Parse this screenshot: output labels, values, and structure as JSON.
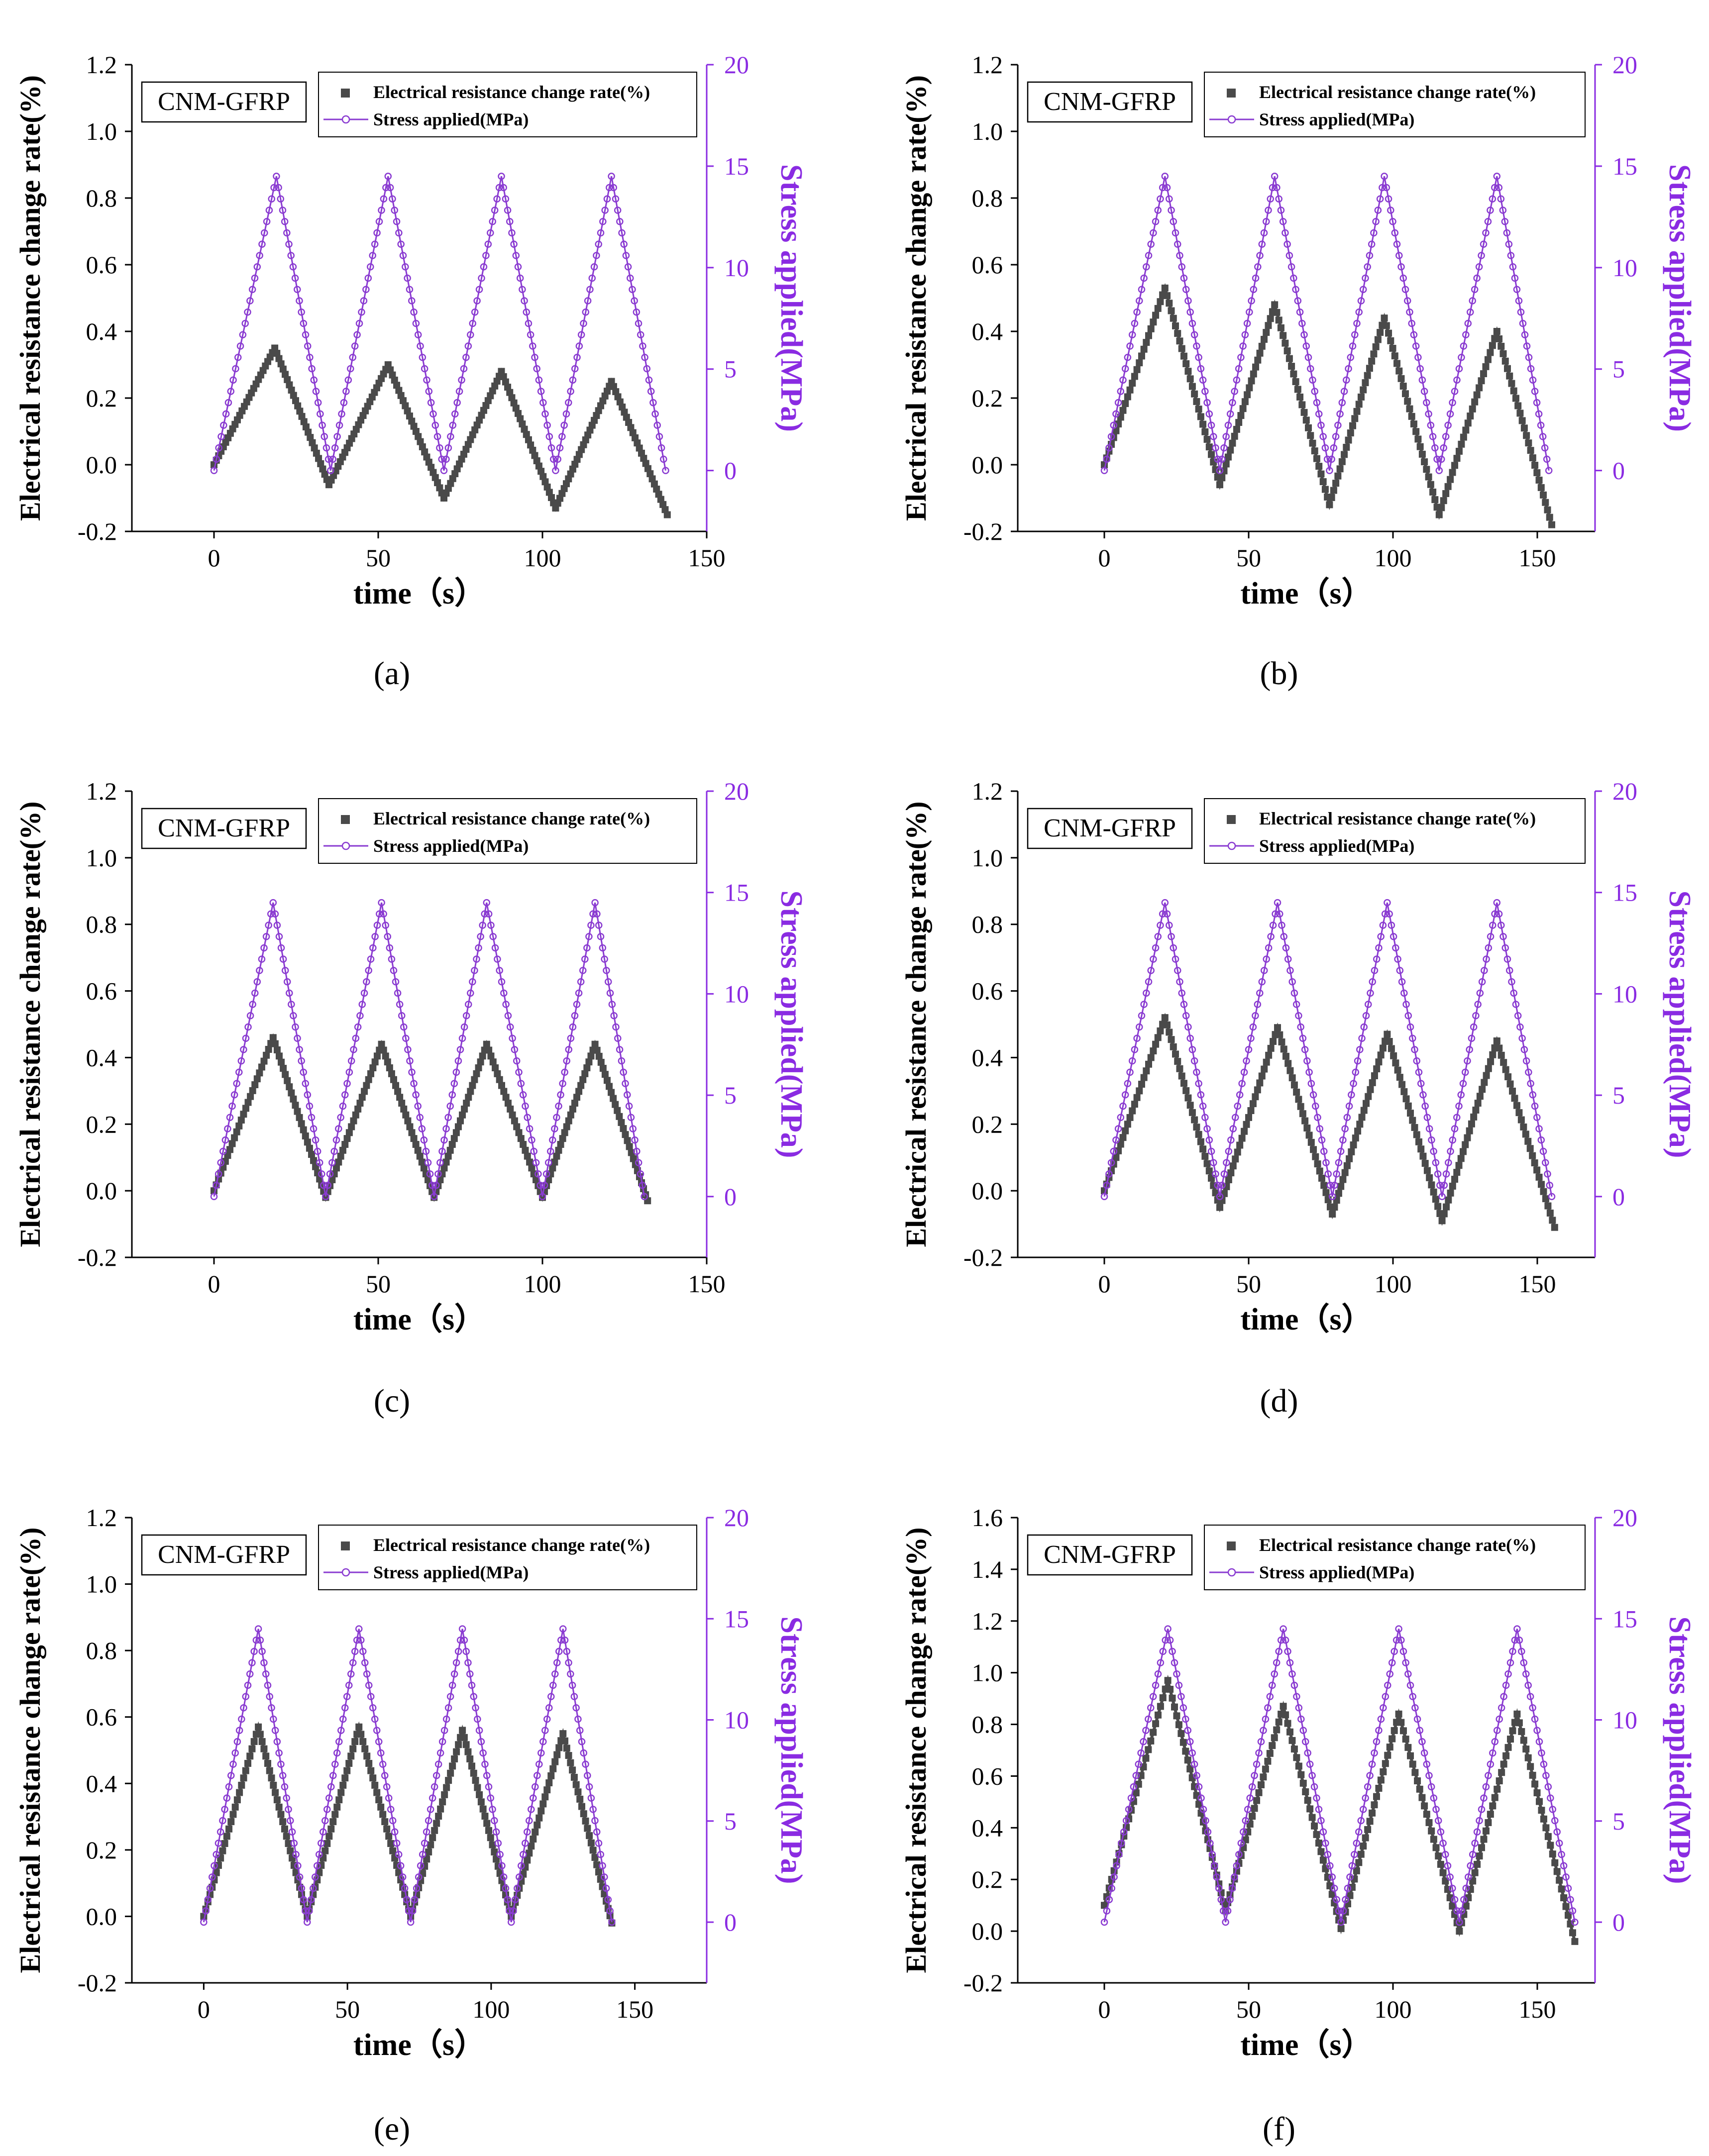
{
  "colors": {
    "resistance": "#4a4a4a",
    "stress": "#8a3bd1",
    "axis": "#000000",
    "right_axis": "#8a2be2"
  },
  "chart_data": [
    {
      "panel": "(a)",
      "type": "line",
      "title": "",
      "badge": "CNM-GFRP",
      "xlabel": "time（s）",
      "ylabel": "Electrical resistance change rate(%)",
      "y2label": "Stress applied(MPa)",
      "legend": [
        "Electrical resistance change rate(%)",
        "Stress applied(MPa)"
      ],
      "legend_position": "top-right",
      "xlim": [
        -25,
        150
      ],
      "xticks": [
        0,
        50,
        100,
        150
      ],
      "ylim": [
        -0.2,
        1.2
      ],
      "yticks": [
        -0.2,
        0.0,
        0.2,
        0.4,
        0.6,
        0.8,
        1.0,
        1.2
      ],
      "y2lim": [
        -3,
        20
      ],
      "y2ticks": [
        0,
        5,
        10,
        15,
        20
      ],
      "series": [
        {
          "name": "Electrical resistance change rate(%)",
          "axis": "left",
          "marker": "square",
          "x": [
            0,
            18.5,
            35,
            53,
            70,
            87.5,
            104,
            121,
            138
          ],
          "y": [
            0.0,
            0.35,
            -0.06,
            0.3,
            -0.1,
            0.28,
            -0.13,
            0.25,
            -0.15
          ]
        },
        {
          "name": "Stress applied(MPa)",
          "axis": "right",
          "marker": "circle",
          "x": [
            0,
            19,
            35.5,
            53,
            70,
            87.5,
            104,
            121,
            137.5
          ],
          "y": [
            0,
            14.5,
            0,
            14.5,
            0,
            14.5,
            0,
            14.5,
            0
          ]
        }
      ]
    },
    {
      "panel": "(b)",
      "type": "line",
      "title": "",
      "badge": "CNM-GFRP",
      "xlabel": "time（s）",
      "ylabel": "Electrical resistance change rate(%)",
      "y2label": "Stress applied(MPa)",
      "legend": [
        "Electrical resistance change rate(%)",
        "Stress applied(MPa)"
      ],
      "legend_position": "top-right",
      "xlim": [
        -30,
        170
      ],
      "xticks": [
        0,
        50,
        100,
        150
      ],
      "ylim": [
        -0.2,
        1.2
      ],
      "yticks": [
        -0.2,
        0.0,
        0.2,
        0.4,
        0.6,
        0.8,
        1.0,
        1.2
      ],
      "y2lim": [
        -3,
        20
      ],
      "y2ticks": [
        0,
        5,
        10,
        15,
        20
      ],
      "series": [
        {
          "name": "Electrical resistance change rate(%)",
          "axis": "left",
          "marker": "square",
          "x": [
            0,
            21,
            40,
            59,
            78,
            97,
            116,
            136,
            155
          ],
          "y": [
            0.0,
            0.53,
            -0.06,
            0.48,
            -0.12,
            0.44,
            -0.15,
            0.4,
            -0.18
          ]
        },
        {
          "name": "Stress applied(MPa)",
          "axis": "right",
          "marker": "circle",
          "x": [
            0,
            21,
            40,
            59,
            78,
            97,
            116,
            136,
            154
          ],
          "y": [
            0,
            14.5,
            0,
            14.5,
            0,
            14.5,
            0,
            14.5,
            0
          ]
        }
      ]
    },
    {
      "panel": "(c)",
      "type": "line",
      "title": "",
      "badge": "CNM-GFRP",
      "xlabel": "time（s）",
      "ylabel": "Electrical resistance change rate(%)",
      "y2label": "Stress applied(MPa)",
      "legend": [
        "Electrical resistance change rate(%)",
        "Stress applied(MPa)"
      ],
      "legend_position": "top-right",
      "xlim": [
        -25,
        150
      ],
      "xticks": [
        0,
        50,
        100,
        150
      ],
      "ylim": [
        -0.2,
        1.2
      ],
      "yticks": [
        -0.2,
        0.0,
        0.2,
        0.4,
        0.6,
        0.8,
        1.0,
        1.2
      ],
      "y2lim": [
        -3,
        20
      ],
      "y2ticks": [
        0,
        5,
        10,
        15,
        20
      ],
      "series": [
        {
          "name": "Electrical resistance change rate(%)",
          "axis": "left",
          "marker": "square",
          "x": [
            0,
            18,
            34,
            51,
            67,
            83,
            100,
            116,
            132
          ],
          "y": [
            0.0,
            0.46,
            -0.02,
            0.44,
            -0.02,
            0.44,
            -0.02,
            0.44,
            -0.03
          ]
        },
        {
          "name": "Stress applied(MPa)",
          "axis": "right",
          "marker": "circle",
          "x": [
            0,
            18,
            34,
            51,
            67,
            83,
            100,
            116,
            131
          ],
          "y": [
            0,
            14.5,
            0,
            14.5,
            0,
            14.5,
            0,
            14.5,
            0
          ]
        }
      ]
    },
    {
      "panel": "(d)",
      "type": "line",
      "title": "",
      "badge": "CNM-GFRP",
      "xlabel": "time（s）",
      "ylabel": "Electrical resistance change rate(%)",
      "y2label": "Stress applied(MPa)",
      "legend": [
        "Electrical resistance change rate(%)",
        "Stress applied(MPa)"
      ],
      "legend_position": "top-right",
      "xlim": [
        -30,
        170
      ],
      "xticks": [
        0,
        50,
        100,
        150
      ],
      "ylim": [
        -0.2,
        1.2
      ],
      "yticks": [
        -0.2,
        0.0,
        0.2,
        0.4,
        0.6,
        0.8,
        1.0,
        1.2
      ],
      "y2lim": [
        -3,
        20
      ],
      "y2ticks": [
        0,
        5,
        10,
        15,
        20
      ],
      "series": [
        {
          "name": "Electrical resistance change rate(%)",
          "axis": "left",
          "marker": "square",
          "x": [
            0,
            21,
            40,
            60,
            79,
            98,
            117,
            136,
            156
          ],
          "y": [
            0.0,
            0.52,
            -0.05,
            0.49,
            -0.07,
            0.47,
            -0.09,
            0.45,
            -0.11
          ]
        },
        {
          "name": "Stress applied(MPa)",
          "axis": "right",
          "marker": "circle",
          "x": [
            0,
            21,
            40,
            60,
            79,
            98,
            117,
            136,
            155
          ],
          "y": [
            0,
            14.5,
            0,
            14.5,
            0,
            14.5,
            0,
            14.5,
            0
          ]
        }
      ]
    },
    {
      "panel": "(e)",
      "type": "line",
      "title": "",
      "badge": "CNM-GFRP",
      "xlabel": "time（s）",
      "ylabel": "Electrical resistance change rate(%)",
      "y2label": "Stress applied(MPa)",
      "legend": [
        "Electrical resistance change rate(%)",
        "Stress applied(MPa)"
      ],
      "legend_position": "top-right",
      "xlim": [
        -25,
        175
      ],
      "xticks": [
        0,
        50,
        100,
        150
      ],
      "ylim": [
        -0.2,
        1.2
      ],
      "yticks": [
        -0.2,
        0.0,
        0.2,
        0.4,
        0.6,
        0.8,
        1.0,
        1.2
      ],
      "y2lim": [
        -3,
        20
      ],
      "y2ticks": [
        0,
        5,
        10,
        15,
        20
      ],
      "series": [
        {
          "name": "Electrical resistance change rate(%)",
          "axis": "left",
          "marker": "square",
          "x": [
            0,
            19,
            36,
            54,
            72,
            90,
            107,
            125,
            142
          ],
          "y": [
            0.0,
            0.57,
            0.0,
            0.57,
            0.0,
            0.56,
            0.0,
            0.55,
            -0.02
          ]
        },
        {
          "name": "Stress applied(MPa)",
          "axis": "right",
          "marker": "circle",
          "x": [
            0,
            19,
            36,
            54,
            72,
            90,
            107,
            125,
            142
          ],
          "y": [
            0,
            14.5,
            0,
            14.5,
            0,
            14.5,
            0,
            14.5,
            0
          ]
        }
      ]
    },
    {
      "panel": "(f)",
      "type": "line",
      "title": "",
      "badge": "CNM-GFRP",
      "xlabel": "time（s）",
      "ylabel": "Electrical resistance change rate(%)",
      "y2label": "Stress applied(MPa)",
      "legend": [
        "Electrical resistance change rate(%)",
        "Stress applied(MPa)"
      ],
      "legend_position": "top-right",
      "xlim": [
        -30,
        170
      ],
      "xticks": [
        0,
        50,
        100,
        150
      ],
      "ylim": [
        -0.2,
        1.6
      ],
      "yticks": [
        -0.2,
        0.0,
        0.2,
        0.4,
        0.6,
        0.8,
        1.0,
        1.2,
        1.4,
        1.6
      ],
      "y2lim": [
        -3,
        20
      ],
      "y2ticks": [
        0,
        5,
        10,
        15,
        20
      ],
      "series": [
        {
          "name": "Electrical resistance change rate(%)",
          "axis": "left",
          "marker": "square",
          "x": [
            0,
            22,
            42,
            62,
            82,
            102,
            123,
            143,
            163
          ],
          "y": [
            0.1,
            0.97,
            0.08,
            0.87,
            0.01,
            0.84,
            0.0,
            0.84,
            -0.04
          ]
        },
        {
          "name": "Stress applied(MPa)",
          "axis": "right",
          "marker": "circle",
          "x": [
            0,
            22,
            42,
            62,
            82,
            102,
            123,
            143,
            163
          ],
          "y": [
            0,
            14.5,
            0,
            14.5,
            0,
            14.5,
            0,
            14.5,
            0
          ]
        }
      ]
    }
  ]
}
